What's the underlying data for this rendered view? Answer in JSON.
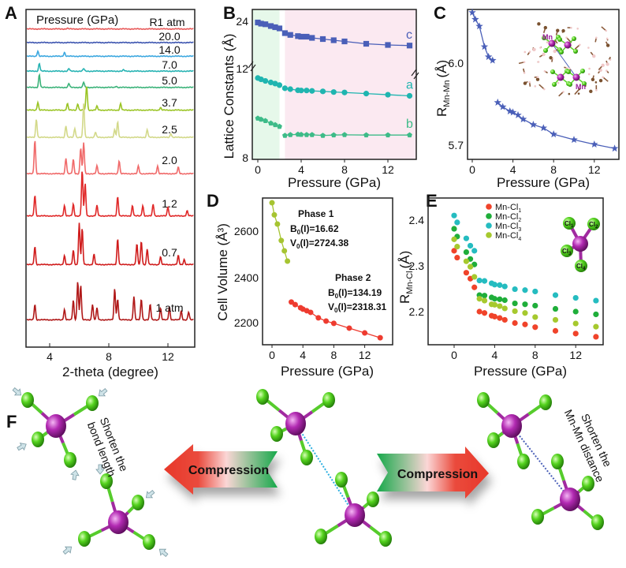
{
  "panels": {
    "A": "A",
    "B": "B",
    "C": "C",
    "D": "D",
    "E": "E",
    "F": "F"
  },
  "chart_data": [
    {
      "panel": "A",
      "type": "line",
      "title": "Pressure (GPa)",
      "xlabel": "2-theta (degree)",
      "ylabel": "",
      "xlim": [
        2.4,
        13.8
      ],
      "xticks": [
        "4",
        "8",
        "12"
      ],
      "series": [
        {
          "name": "R1 atm",
          "color": "#e85a5a",
          "peaks": [
            [
              5.2,
              0.05
            ]
          ]
        },
        {
          "name": "20.0",
          "color": "#3d55b0",
          "peaks": []
        },
        {
          "name": "14.0",
          "color": "#3da8e0",
          "peaks": [
            [
              3.2,
              0.4
            ],
            [
              5.0,
              0.3
            ]
          ]
        },
        {
          "name": "7.0",
          "color": "#27b3b3",
          "peaks": [
            [
              3.3,
              0.6
            ],
            [
              5.3,
              0.2
            ],
            [
              6.3,
              0.2
            ],
            [
              9.0,
              0.1
            ]
          ]
        },
        {
          "name": "5.0",
          "color": "#3cb37a",
          "peaks": [
            [
              3.3,
              1.0
            ],
            [
              5.3,
              0.3
            ],
            [
              6.3,
              0.4
            ],
            [
              8.5,
              0.1
            ]
          ]
        },
        {
          "name": "3.7",
          "color": "#9ac424",
          "peaks": [
            [
              3.2,
              0.6
            ],
            [
              5.2,
              0.5
            ],
            [
              5.9,
              0.5
            ],
            [
              6.5,
              1.9
            ],
            [
              7.2,
              0.3
            ],
            [
              8.8,
              0.5
            ],
            [
              11.5,
              0.2
            ]
          ]
        },
        {
          "name": "2.5",
          "color": "#d3d98a",
          "peaks": [
            [
              3.1,
              1.4
            ],
            [
              5.1,
              0.9
            ],
            [
              5.7,
              0.7
            ],
            [
              6.3,
              2.6
            ],
            [
              7.1,
              0.4
            ],
            [
              8.4,
              0.6
            ],
            [
              8.6,
              1.2
            ],
            [
              10.6,
              0.6
            ],
            [
              12.2,
              0.3
            ]
          ]
        },
        {
          "name": "2.0",
          "color": "#f06a6a",
          "peaks": [
            [
              3.0,
              2.6
            ],
            [
              5.1,
              1.2
            ],
            [
              5.6,
              1.1
            ],
            [
              6.1,
              2.0
            ],
            [
              6.3,
              2.4
            ],
            [
              7.2,
              0.6
            ],
            [
              8.7,
              1.0
            ],
            [
              10.0,
              0.6
            ],
            [
              11.3,
              0.6
            ],
            [
              12.7,
              0.5
            ]
          ]
        },
        {
          "name": "1.2",
          "color": "#e02828",
          "peaks": [
            [
              3.0,
              1.6
            ],
            [
              5.0,
              0.8
            ],
            [
              5.6,
              0.9
            ],
            [
              6.2,
              3.5
            ],
            [
              6.4,
              2.5
            ],
            [
              7.2,
              0.8
            ],
            [
              8.6,
              1.5
            ],
            [
              9.6,
              0.8
            ],
            [
              10.3,
              0.8
            ],
            [
              11.0,
              0.9
            ],
            [
              12.0,
              0.7
            ],
            [
              13.3,
              0.4
            ]
          ]
        },
        {
          "name": "0.7",
          "color": "#d01c1c",
          "peaks": [
            [
              3.0,
              1.4
            ],
            [
              5.0,
              0.7
            ],
            [
              5.6,
              1.1
            ],
            [
              6.0,
              3.2
            ],
            [
              6.2,
              2.8
            ],
            [
              7.0,
              0.8
            ],
            [
              8.6,
              2.0
            ],
            [
              9.9,
              1.6
            ],
            [
              10.2,
              1.8
            ],
            [
              10.6,
              1.2
            ],
            [
              11.5,
              0.6
            ],
            [
              12.7,
              0.7
            ],
            [
              13.1,
              0.4
            ]
          ]
        },
        {
          "name": "1 atm",
          "color": "#b01818",
          "peaks": [
            [
              3.0,
              1.2
            ],
            [
              5.0,
              0.8
            ],
            [
              5.6,
              1.5
            ],
            [
              5.9,
              3.0
            ],
            [
              6.1,
              2.7
            ],
            [
              6.9,
              1.2
            ],
            [
              7.2,
              0.9
            ],
            [
              8.4,
              2.4
            ],
            [
              8.6,
              1.6
            ],
            [
              9.7,
              1.8
            ],
            [
              10.2,
              1.6
            ],
            [
              10.8,
              1.2
            ],
            [
              11.5,
              0.9
            ],
            [
              12.1,
              1.0
            ],
            [
              12.9,
              0.7
            ],
            [
              13.4,
              0.6
            ]
          ]
        }
      ]
    },
    {
      "panel": "B",
      "type": "line",
      "xlabel": "Pressure (GPa)",
      "ylabel": "Lattice Constants (Å)",
      "xlim": [
        -0.5,
        14.5
      ],
      "xticks": [
        "0",
        "4",
        "8",
        "12"
      ],
      "yticks": [
        "8",
        "12",
        "24"
      ],
      "y_axis_break": true,
      "phase_regions": [
        {
          "range": [
            -0.5,
            2.0
          ],
          "color": "#e6f8ea"
        },
        {
          "range": [
            2.5,
            14.5
          ],
          "color": "#fbe9f1"
        }
      ],
      "x": [
        0,
        0.3,
        0.7,
        1.2,
        1.6,
        2.0,
        2.5,
        3,
        3.7,
        4,
        4.5,
        5,
        6,
        7,
        8,
        10,
        12,
        14
      ],
      "series": [
        {
          "name": "c",
          "color": "#4a5fb8",
          "marker": "square",
          "values": [
            23.9,
            23.8,
            23.75,
            23.6,
            23.5,
            23.4,
            23.0,
            22.85,
            22.75,
            22.7,
            22.7,
            22.6,
            22.5,
            22.4,
            22.3,
            22.1,
            22.0,
            21.95
          ]
        },
        {
          "name": "a",
          "color": "#1fb5b0",
          "marker": "circle",
          "values": [
            11.58,
            11.52,
            11.45,
            11.38,
            11.33,
            11.26,
            11.12,
            11.08,
            11.03,
            11.02,
            11.02,
            11.0,
            10.98,
            10.95,
            10.93,
            10.88,
            10.83,
            10.78
          ]
        },
        {
          "name": "b",
          "color": "#3dbb88",
          "marker": "pentagon",
          "values": [
            9.77,
            9.72,
            9.66,
            9.55,
            9.48,
            9.4,
            9.0,
            9.03,
            9.05,
            9.04,
            9.03,
            9.03,
            9.0,
            9.02,
            9.03,
            9.02,
            9.02,
            9.02
          ]
        }
      ]
    },
    {
      "panel": "C",
      "type": "line",
      "xlabel": "Pressure (GPa)",
      "ylabel_main": "R",
      "ylabel_sub": "Mn-Mn",
      "ylabel_unit": "(Å)",
      "xlim": [
        -0.5,
        14.5
      ],
      "ylim": [
        5.65,
        6.2
      ],
      "xticks": [
        "0",
        "4",
        "8",
        "12"
      ],
      "yticks": [
        "5.7",
        "6.0"
      ],
      "color": "#4a5fb8",
      "marker": "star",
      "series": [
        {
          "x": [
            0,
            0.3,
            0.7,
            1.2,
            1.6,
            2.0
          ],
          "values": [
            6.185,
            6.16,
            6.135,
            6.06,
            6.023,
            6.01
          ]
        },
        {
          "x": [
            2.5,
            3,
            3.7,
            4,
            4.5,
            5,
            6,
            7,
            8,
            10,
            12,
            14
          ],
          "values": [
            5.856,
            5.84,
            5.824,
            5.82,
            5.81,
            5.795,
            5.775,
            5.763,
            5.74,
            5.72,
            5.703,
            5.688
          ]
        }
      ],
      "inset_labels": [
        "Mn",
        "Mn"
      ]
    },
    {
      "panel": "D",
      "type": "line",
      "xlabel": "Pressure (GPa)",
      "ylabel": "Cell Volume (Å³)",
      "xlim": [
        -1.2,
        15.8
      ],
      "ylim": [
        2060,
        2745
      ],
      "xticks": [
        "0",
        "4",
        "8",
        "12"
      ],
      "yticks": [
        "2200",
        "2400",
        "2600"
      ],
      "series": [
        {
          "name": "Phase 1",
          "color": "#a6c431",
          "x": [
            0,
            0.3,
            0.7,
            1.2,
            1.6,
            2.0
          ],
          "values": [
            2724,
            2671,
            2631,
            2559,
            2514,
            2469
          ]
        },
        {
          "name": "Phase 2",
          "color": "#ee3b2f",
          "x": [
            2.5,
            3,
            3.7,
            4,
            4.5,
            5,
            6,
            7,
            8,
            10,
            12,
            14
          ],
          "values": [
            2290,
            2279,
            2265,
            2259,
            2252,
            2245,
            2221,
            2207,
            2197,
            2176,
            2155,
            2134
          ]
        }
      ],
      "annotations": {
        "phase1_title": "Phase 1",
        "phase1_b_pre": "B",
        "phase1_b_post": "(I)=16.62",
        "phase1_v_pre": "V",
        "phase1_v_post": "(I)=2724.38",
        "phase2_title": "Phase 2",
        "phase2_b_pre": "B",
        "phase2_b_post": "(I)=134.19",
        "phase2_v_pre": "V",
        "phase2_v_post": "(I)=2318.31",
        "sub": "0"
      }
    },
    {
      "panel": "E",
      "type": "scatter",
      "xlabel": "Pressure (GPa)",
      "ylabel_main": "R",
      "ylabel_sub": "Mn-Cl",
      "ylabel_unit": "(Å)",
      "xlim": [
        -0.3,
        14.5
      ],
      "ylim": [
        2.125,
        2.44
      ],
      "xticks": [
        "0",
        "4",
        "8",
        "12"
      ],
      "yticks": [
        "2.2",
        "2.3",
        "2.4"
      ],
      "legend": "top-left",
      "x": [
        0,
        0.3,
        1.2,
        1.6,
        2.0,
        2.5,
        3,
        3.7,
        4,
        4.5,
        5,
        6,
        7,
        8,
        10,
        12,
        14
      ],
      "series": [
        {
          "name": "Mn-Cl",
          "sub": "1",
          "color": "#f0432a",
          "values": [
            2.333,
            2.318,
            2.285,
            2.272,
            2.253,
            2.2,
            2.197,
            2.191,
            2.189,
            2.186,
            2.182,
            2.175,
            2.172,
            2.166,
            2.158,
            2.152,
            2.145
          ]
        },
        {
          "name": "Mn-Cl",
          "sub": "2",
          "color": "#1fae3a",
          "values": [
            2.381,
            2.364,
            2.33,
            2.315,
            2.303,
            2.236,
            2.235,
            2.231,
            2.228,
            2.227,
            2.225,
            2.218,
            2.216,
            2.213,
            2.206,
            2.2,
            2.194
          ]
        },
        {
          "name": "Mn-Cl",
          "sub": "3",
          "color": "#25bcc0",
          "values": [
            2.41,
            2.395,
            2.36,
            2.344,
            2.333,
            2.268,
            2.267,
            2.262,
            2.259,
            2.258,
            2.255,
            2.249,
            2.247,
            2.244,
            2.236,
            2.23,
            2.224
          ]
        },
        {
          "name": "Mn-Cl",
          "sub": "4",
          "color": "#a6c92e",
          "values": [
            2.358,
            2.342,
            2.31,
            2.298,
            2.276,
            2.228,
            2.224,
            2.216,
            2.215,
            2.212,
            2.207,
            2.201,
            2.197,
            2.188,
            2.182,
            2.174,
            2.167
          ]
        }
      ],
      "inset_labels": [
        "Cl",
        "Cl",
        "Cl",
        "Cl"
      ]
    }
  ],
  "panel_f": {
    "left_arrow_label": "Compression",
    "right_arrow_label": "Compression",
    "left_text_line1": "Shorten the",
    "left_text_line2": "bond length",
    "right_text_line1": "Shorten the",
    "right_text_line2": "Mn-Mn distance",
    "colors": {
      "mn": "#9a1f9a",
      "cl": "#4fd12a",
      "bond_mn": "#a12aa0",
      "bond_cl": "#56cc2c",
      "arrow_red": "#e8382a",
      "arrow_green": "#16a84a"
    }
  }
}
